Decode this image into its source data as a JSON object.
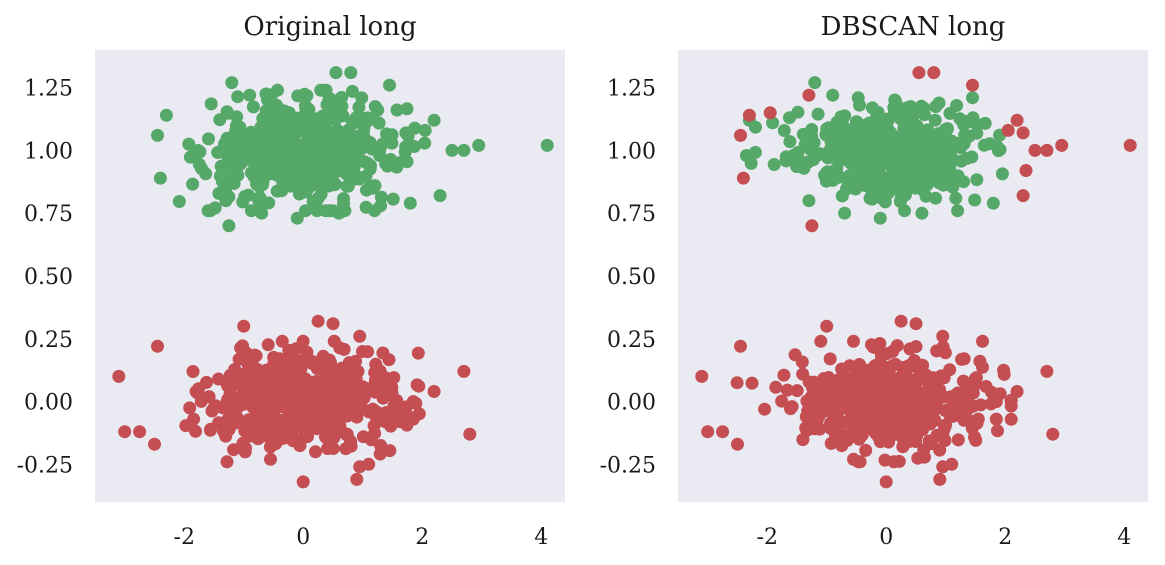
{
  "chart_data": [
    {
      "type": "scatter",
      "title": "Original long",
      "xlabel": "",
      "ylabel": "",
      "xlim": [
        -3.5,
        4.4
      ],
      "ylim": [
        -0.4,
        1.4
      ],
      "xticks": [
        "-2",
        "0",
        "2",
        "4"
      ],
      "xtick_values": [
        -2,
        0,
        2,
        4
      ],
      "yticks": [
        "-0.25",
        "0.00",
        "0.25",
        "0.50",
        "0.75",
        "1.00",
        "1.25"
      ],
      "ytick_values": [
        -0.25,
        0.0,
        0.25,
        0.5,
        0.75,
        1.0,
        1.25
      ],
      "grid": false,
      "series": [
        {
          "color": "#55a868",
          "cluster": {
            "center": [
              0,
              1.0
            ],
            "sd": [
              0.8,
              0.1
            ],
            "n": 500
          },
          "points": [
            [
              4.1,
              1.02
            ],
            [
              2.95,
              1.02
            ],
            [
              2.7,
              1.0
            ],
            [
              2.5,
              1.0
            ],
            [
              2.2,
              1.12
            ],
            [
              2.05,
              1.08
            ],
            [
              1.8,
              0.79
            ],
            [
              2.3,
              0.82
            ],
            [
              0.55,
              1.31
            ],
            [
              0.8,
              1.31
            ],
            [
              1.45,
              1.26
            ],
            [
              -1.2,
              1.27
            ],
            [
              -0.9,
              1.22
            ],
            [
              -0.45,
              1.18
            ],
            [
              -2.3,
              1.14
            ],
            [
              -2.45,
              1.06
            ],
            [
              -2.4,
              0.89
            ],
            [
              -1.25,
              0.7
            ],
            [
              -0.1,
              0.73
            ],
            [
              0.6,
              0.75
            ],
            [
              1.2,
              0.76
            ],
            [
              -1.3,
              0.8
            ],
            [
              -0.7,
              0.75
            ],
            [
              0.25,
              0.81
            ]
          ]
        },
        {
          "color": "#c44e52",
          "cluster": {
            "center": [
              0,
              0.0
            ],
            "sd": [
              0.8,
              0.1
            ],
            "n": 500
          },
          "points": [
            [
              -3.1,
              0.1
            ],
            [
              -3.0,
              -0.12
            ],
            [
              -2.75,
              -0.12
            ],
            [
              -2.5,
              -0.17
            ],
            [
              -2.45,
              0.22
            ],
            [
              -1.0,
              0.3
            ],
            [
              0.25,
              0.32
            ],
            [
              0.5,
              0.31
            ],
            [
              0.95,
              0.26
            ],
            [
              2.7,
              0.12
            ],
            [
              2.8,
              -0.13
            ],
            [
              2.2,
              0.04
            ],
            [
              0.0,
              -0.32
            ],
            [
              0.9,
              -0.31
            ],
            [
              0.95,
              -0.26
            ],
            [
              -0.55,
              -0.23
            ],
            [
              1.1,
              -0.25
            ],
            [
              1.85,
              -0.07
            ],
            [
              1.85,
              0.0
            ]
          ]
        }
      ]
    },
    {
      "type": "scatter",
      "title": "DBSCAN long",
      "xlabel": "",
      "ylabel": "",
      "xlim": [
        -3.5,
        4.4
      ],
      "ylim": [
        -0.4,
        1.4
      ],
      "xticks": [
        "-2",
        "0",
        "2",
        "4"
      ],
      "xtick_values": [
        -2,
        0,
        2,
        4
      ],
      "yticks": [
        "-0.25",
        "0.00",
        "0.25",
        "0.50",
        "0.75",
        "1.00",
        "1.25"
      ],
      "ytick_values": [
        -0.25,
        0.0,
        0.25,
        0.5,
        0.75,
        1.0,
        1.25
      ],
      "grid": false,
      "series": [
        {
          "color": "#55a868",
          "cluster": {
            "center": [
              0,
              1.0
            ],
            "sd": [
              0.72,
              0.09
            ],
            "n": 470
          },
          "points": [
            [
              -1.2,
              1.27
            ],
            [
              -0.9,
              1.22
            ],
            [
              -0.45,
              1.18
            ],
            [
              1.45,
              1.21
            ],
            [
              1.8,
              0.79
            ],
            [
              -1.3,
              0.8
            ],
            [
              -0.7,
              0.75
            ],
            [
              0.6,
              0.75
            ],
            [
              1.2,
              0.76
            ],
            [
              -0.1,
              0.73
            ],
            [
              0.25,
              0.81
            ],
            [
              -2.3,
              1.12
            ],
            [
              -2.35,
              0.98
            ]
          ]
        },
        {
          "color": "#c44e52",
          "cluster": {
            "center": [
              0,
              0.0
            ],
            "sd": [
              0.8,
              0.1
            ],
            "n": 500
          },
          "points": [
            [
              -3.1,
              0.1
            ],
            [
              -3.0,
              -0.12
            ],
            [
              -2.75,
              -0.12
            ],
            [
              -2.5,
              -0.17
            ],
            [
              -2.45,
              0.22
            ],
            [
              -1.0,
              0.3
            ],
            [
              0.25,
              0.32
            ],
            [
              0.5,
              0.31
            ],
            [
              0.95,
              0.26
            ],
            [
              2.7,
              0.12
            ],
            [
              2.8,
              -0.13
            ],
            [
              2.2,
              0.04
            ],
            [
              0.0,
              -0.32
            ],
            [
              0.9,
              -0.31
            ],
            [
              0.95,
              -0.26
            ],
            [
              -0.55,
              -0.23
            ],
            [
              1.1,
              -0.25
            ],
            [
              1.85,
              -0.07
            ],
            [
              1.85,
              0.0
            ],
            [
              4.1,
              1.02
            ],
            [
              2.95,
              1.02
            ],
            [
              2.7,
              1.0
            ],
            [
              2.5,
              1.0
            ],
            [
              2.2,
              1.12
            ],
            [
              2.3,
              1.07
            ],
            [
              2.3,
              0.82
            ],
            [
              2.35,
              0.92
            ],
            [
              0.55,
              1.31
            ],
            [
              0.8,
              1.31
            ],
            [
              1.45,
              1.26
            ],
            [
              -2.3,
              1.14
            ],
            [
              -1.95,
              1.15
            ],
            [
              -1.3,
              1.22
            ],
            [
              -2.45,
              1.06
            ],
            [
              -2.4,
              0.89
            ],
            [
              -1.25,
              0.7
            ],
            [
              2.05,
              1.08
            ]
          ]
        }
      ]
    }
  ]
}
